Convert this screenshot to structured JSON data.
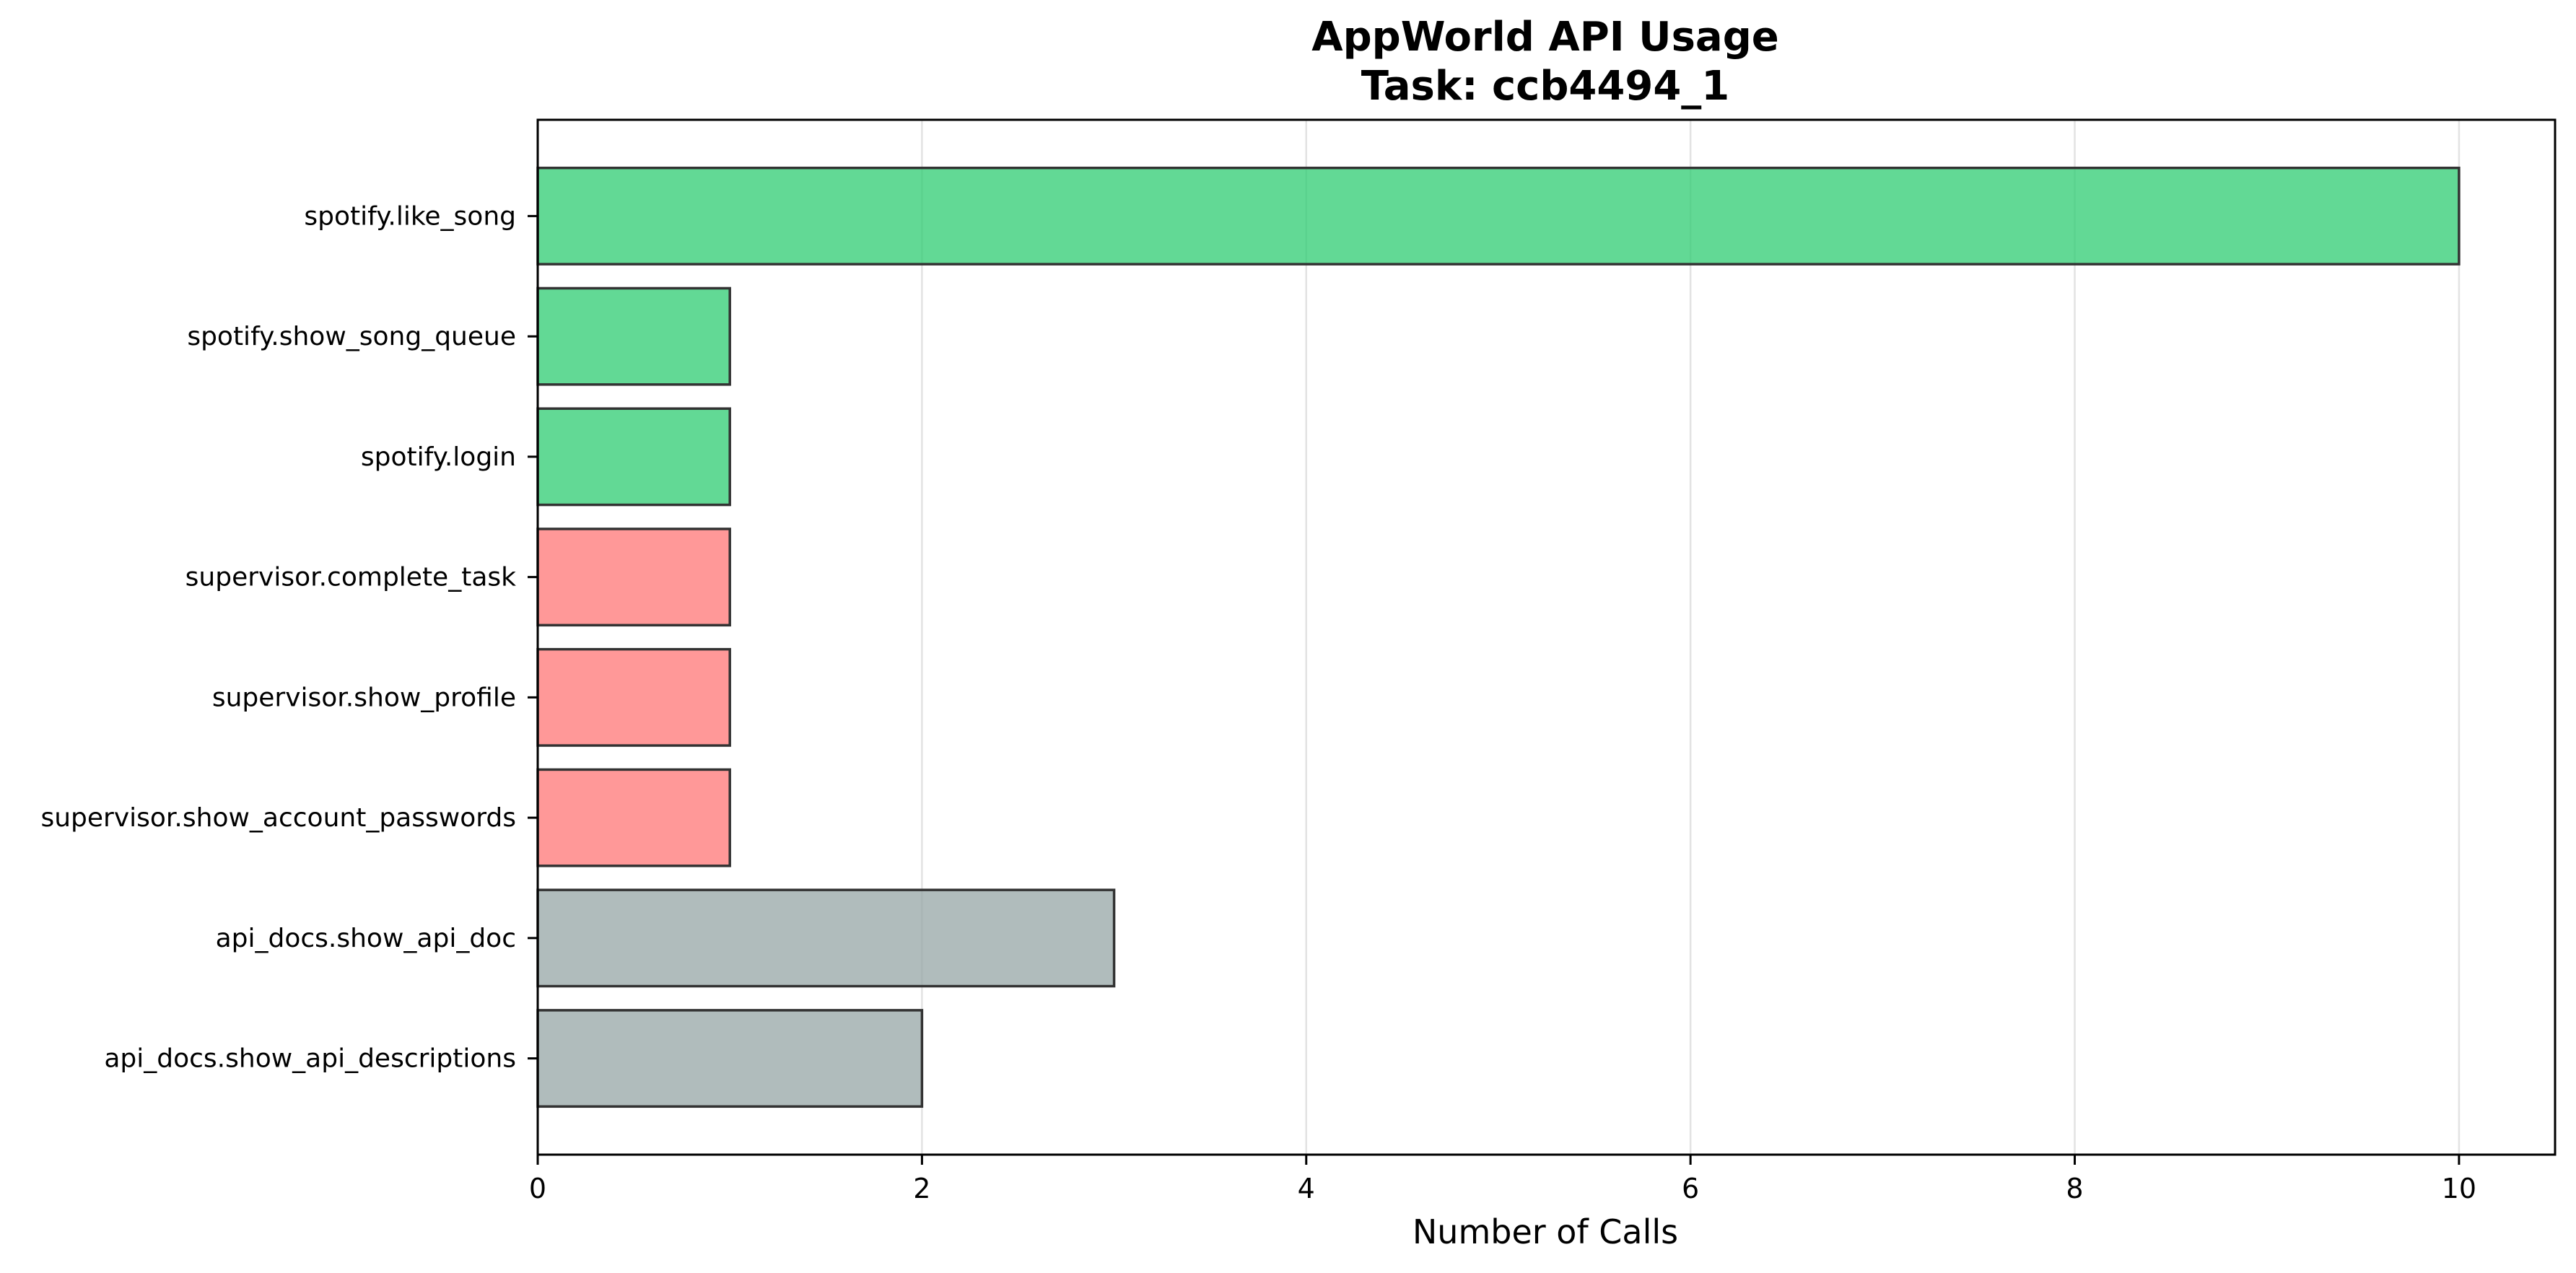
{
  "chart_data": {
    "type": "bar",
    "orientation": "horizontal",
    "title": "AppWorld API Usage",
    "subtitle": "Task: ccb4494_1",
    "xlabel": "Number of Calls",
    "ylabel": "",
    "xlim": [
      0,
      10.5
    ],
    "xticks": [
      0,
      2,
      4,
      6,
      8,
      10
    ],
    "grid": "x",
    "categories": [
      "spotify.like_song",
      "spotify.show_song_queue",
      "spotify.login",
      "supervisor.complete_task",
      "supervisor.show_profile",
      "supervisor.show_account_passwords",
      "api_docs.show_api_doc",
      "api_docs.show_api_descriptions"
    ],
    "values": [
      10,
      1,
      1,
      1,
      1,
      1,
      3,
      2
    ],
    "bar_colors": [
      "#2ecc71",
      "#2ecc71",
      "#2ecc71",
      "#ff7675",
      "#ff7675",
      "#ff7675",
      "#95a5a6",
      "#95a5a6"
    ],
    "bar_edge_color": "#333333"
  }
}
